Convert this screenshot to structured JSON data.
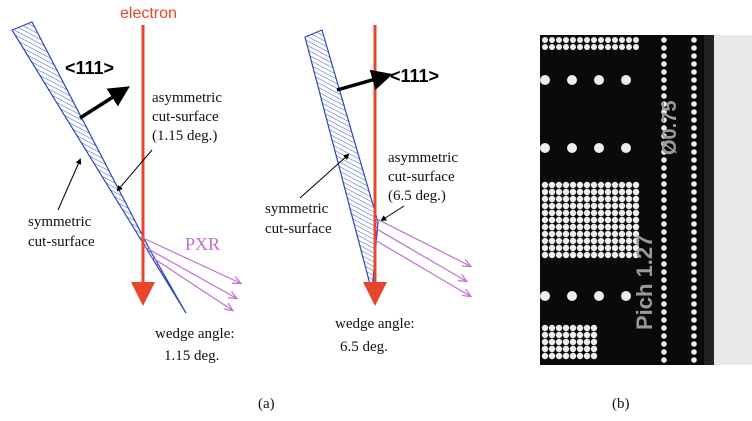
{
  "panel_a": {
    "left": {
      "electron": "electron",
      "direction": "<111>",
      "asymmetric": [
        "asymmetric",
        "cut-surface",
        "(1.15 deg.)"
      ],
      "symmetric": [
        "symmetric",
        "cut-surface"
      ],
      "pxr": "PXR",
      "wedge": [
        "wedge angle:",
        "1.15 deg."
      ]
    },
    "right": {
      "direction": "<111>",
      "asymmetric": [
        "asymmetric",
        "cut-surface",
        "(6.5 deg.)"
      ],
      "symmetric": [
        "symmetric",
        "cut-surface"
      ],
      "wedge": [
        "wedge angle:",
        "6.5 deg."
      ]
    },
    "caption": "(a)"
  },
  "panel_b": {
    "pitch": "Pich 1.27",
    "diameter": "Ø0.75",
    "caption": "(b)"
  }
}
